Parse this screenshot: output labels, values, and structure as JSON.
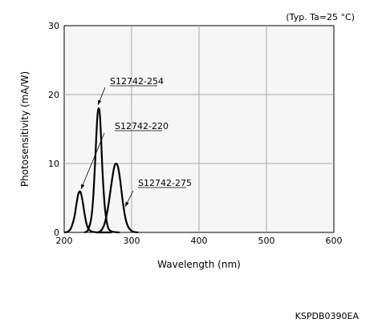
{
  "chart_data": {
    "type": "line",
    "title": "",
    "conditions": "(Typ. Ta=25 °C)",
    "xlabel": "Wavelength (nm)",
    "ylabel": "Photosensitivity (mA/W)",
    "xlim": [
      200,
      600
    ],
    "ylim": [
      0,
      30
    ],
    "xticks": [
      200,
      300,
      400,
      500,
      600
    ],
    "yticks": [
      0,
      10,
      20,
      30
    ],
    "grid": true,
    "legend": "none",
    "series": [
      {
        "name": "S12742-220",
        "x": [
          200,
          205,
          210,
          215,
          218,
          221,
          224,
          227,
          230,
          233,
          236,
          240,
          245,
          250,
          255,
          262,
          270
        ],
        "y": [
          0,
          0.1,
          0.6,
          2.2,
          4.0,
          5.6,
          5.9,
          4.7,
          2.8,
          1.3,
          0.5,
          0.15,
          0.05,
          0,
          0,
          0,
          0
        ]
      },
      {
        "name": "S12742-254",
        "x": [
          230,
          235,
          240,
          243,
          246,
          249,
          251,
          253,
          255,
          257,
          260,
          263,
          266,
          270,
          275,
          282
        ],
        "y": [
          0,
          0.3,
          2.0,
          5.0,
          10.5,
          16.5,
          18.0,
          17.0,
          13.0,
          8.5,
          4.0,
          1.6,
          0.5,
          0.15,
          0.05,
          0
        ]
      },
      {
        "name": "S12742-275",
        "x": [
          250,
          255,
          260,
          265,
          270,
          274,
          277,
          280,
          283,
          287,
          291,
          295,
          300,
          305,
          310
        ],
        "y": [
          0,
          0.3,
          1.3,
          3.6,
          7.0,
          9.4,
          10.0,
          9.4,
          7.6,
          4.4,
          2.0,
          0.8,
          0.2,
          0.05,
          0
        ]
      }
    ],
    "annotations": [
      {
        "text": "S12742-254",
        "series": "S12742-254"
      },
      {
        "text": "S12742-220",
        "series": "S12742-220"
      },
      {
        "text": "S12742-275",
        "series": "S12742-275"
      }
    ],
    "code": "KSPDB0390EA"
  }
}
